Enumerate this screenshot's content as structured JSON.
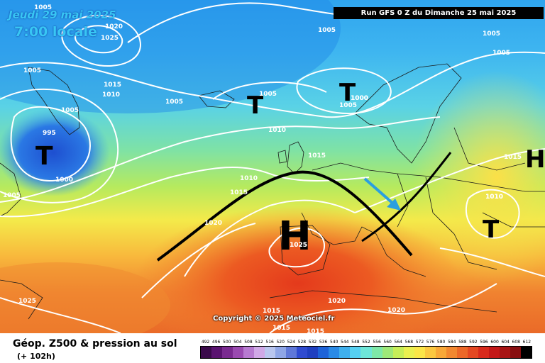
{
  "map": {
    "date_line1": "Jeudi 29 mai 2025",
    "date_line2": "7:00 locale",
    "run_banner": "Run GFS 0 Z du Dimanche 25 mai 2025",
    "copyright": "Copyright © 2025 Meteociel.fr",
    "pressure_systems": [
      {
        "symbol": "T",
        "kind": "low",
        "label": "995"
      },
      {
        "symbol": "T",
        "kind": "low",
        "label": "1005"
      },
      {
        "symbol": "T",
        "kind": "low",
        "label": "1005"
      },
      {
        "symbol": "T",
        "kind": "low",
        "label": "1000"
      },
      {
        "symbol": "H",
        "kind": "high",
        "label": "1025"
      },
      {
        "symbol": "H",
        "kind": "high",
        "label": "1015"
      },
      {
        "symbol": "T",
        "kind": "low",
        "label": "1010"
      }
    ],
    "isobar_labels": [
      "1005",
      "1020",
      "1025",
      "1005",
      "1010",
      "1015",
      "1005",
      "1000",
      "1005",
      "1005",
      "1005",
      "1010",
      "1015",
      "1010",
      "1015",
      "1020",
      "1025",
      "1025",
      "1015",
      "1015",
      "1020",
      "1020",
      "1015",
      "1005",
      "1005",
      "1010",
      "1000"
    ],
    "colors": {
      "ridge_line": "#000000",
      "trough_line": "#000000",
      "arrow": "#2b9fe0",
      "isobars": "#ffffff"
    },
    "icons": [
      "pressure-symbol",
      "ridge-axis",
      "trough-axis",
      "flow-arrow-icon"
    ]
  },
  "footer": {
    "title": "Géop. Z500 & pression au sol",
    "subtitle": "(+ 102h)"
  },
  "legend": {
    "ticks": [
      "492",
      "496",
      "500",
      "504",
      "508",
      "512",
      "516",
      "520",
      "524",
      "528",
      "532",
      "536",
      "540",
      "544",
      "548",
      "552",
      "556",
      "560",
      "564",
      "568",
      "572",
      "576",
      "580",
      "584",
      "588",
      "592",
      "596",
      "600",
      "604",
      "608",
      "612"
    ],
    "colors": [
      "#3a0a4a",
      "#5a1370",
      "#7a2a90",
      "#9a4ab0",
      "#b77ad0",
      "#d0a8e6",
      "#b9c6ee",
      "#8fa6e6",
      "#5f78d8",
      "#2f4bd0",
      "#1f3fc0",
      "#1e63d8",
      "#2a8ae6",
      "#3fb0ee",
      "#56d0f2",
      "#6ee6d8",
      "#7ee8a8",
      "#9ee878",
      "#c6ee58",
      "#eaf050",
      "#fbe648",
      "#fbc840",
      "#f8a838",
      "#f28830",
      "#ec6828",
      "#e44822",
      "#d82a1c",
      "#c41818",
      "#a81414",
      "#880e10",
      "#000000"
    ]
  }
}
